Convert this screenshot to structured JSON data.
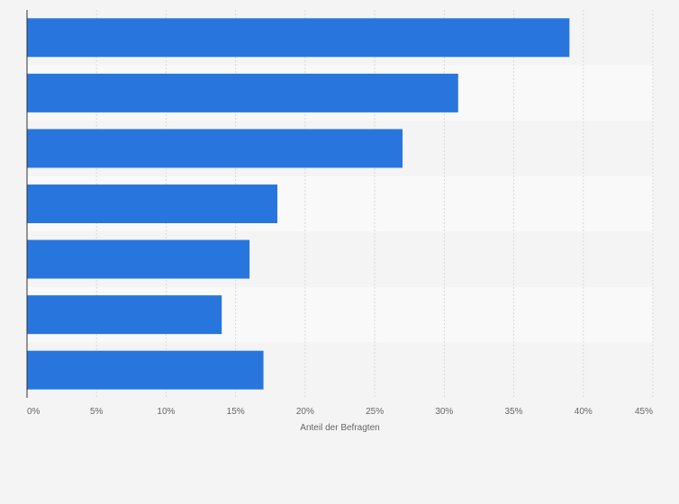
{
  "chart_data": {
    "type": "bar",
    "orientation": "horizontal",
    "categories": [
      "",
      "",
      "",
      "",
      "",
      "",
      ""
    ],
    "values": [
      39,
      31,
      27,
      18,
      16,
      14,
      17
    ],
    "xlabel": "Anteil der Befragten",
    "xlim": [
      0,
      45
    ],
    "ticks": [
      0,
      5,
      10,
      15,
      20,
      25,
      30,
      35,
      40,
      45
    ],
    "tick_labels": [
      "0%",
      "5%",
      "10%",
      "15%",
      "20%",
      "25%",
      "30%",
      "35%",
      "40%",
      "45%"
    ],
    "grid": true,
    "bar_color": "#2876dd",
    "band_colors": [
      "#f4f4f4",
      "#f9f9f9"
    ]
  }
}
